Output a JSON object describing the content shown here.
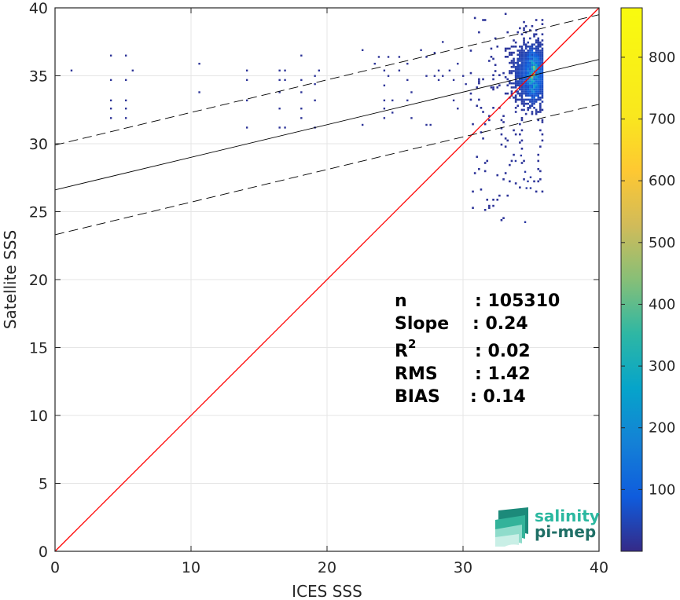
{
  "chart_data": {
    "type": "scatter",
    "subtype": "2d-density-histogram",
    "xlabel": "ICES SSS",
    "ylabel": "Satellite SSS",
    "xlim": [
      0,
      40
    ],
    "ylim": [
      0,
      40
    ],
    "xticks": [
      "0",
      "10",
      "20",
      "30",
      "40"
    ],
    "yticks": [
      "0",
      "5",
      "10",
      "15",
      "20",
      "25",
      "30",
      "35",
      "40"
    ],
    "grid": true,
    "identity_line": {
      "color": "#ff0000",
      "points": [
        [
          0,
          0
        ],
        [
          40,
          40
        ]
      ]
    },
    "fit_line": {
      "color": "#000000",
      "intercept": 26.6,
      "slope": 0.24
    },
    "confidence_lines": [
      {
        "style": "dashed",
        "intercept": 29.9,
        "slope": 0.24
      },
      {
        "style": "dashed",
        "intercept": 23.3,
        "slope": 0.24
      }
    ],
    "colorbar": {
      "min": 0,
      "max": 880,
      "ticks": [
        "100",
        "200",
        "300",
        "400",
        "500",
        "600",
        "700",
        "800"
      ],
      "colormap": "parula"
    },
    "sparse_points": [
      [
        1.2,
        35.4
      ],
      [
        4.1,
        36.5
      ],
      [
        4.1,
        34.7
      ],
      [
        4.1,
        33.2
      ],
      [
        4.1,
        32.6
      ],
      [
        4.1,
        31.9
      ],
      [
        5.2,
        36.5
      ],
      [
        5.2,
        34.7
      ],
      [
        5.2,
        33.2
      ],
      [
        5.2,
        32.6
      ],
      [
        5.2,
        31.9
      ],
      [
        5.7,
        35.4
      ],
      [
        10.6,
        35.9
      ],
      [
        10.6,
        33.8
      ],
      [
        14.1,
        35.4
      ],
      [
        14.1,
        34.7
      ],
      [
        14.1,
        33.2
      ],
      [
        14.1,
        31.2
      ],
      [
        16.5,
        35.4
      ],
      [
        16.5,
        34.7
      ],
      [
        16.5,
        33.8
      ],
      [
        16.5,
        32.6
      ],
      [
        16.5,
        31.2
      ],
      [
        16.9,
        35.4
      ],
      [
        16.9,
        34.7
      ],
      [
        16.9,
        31.2
      ],
      [
        18.1,
        36.5
      ],
      [
        18.1,
        34.7
      ],
      [
        18.1,
        33.8
      ],
      [
        18.1,
        32.6
      ],
      [
        18.1,
        31.9
      ],
      [
        19.1,
        35.0
      ],
      [
        19.1,
        34.4
      ],
      [
        19.1,
        33.2
      ],
      [
        19.1,
        31.2
      ],
      [
        19.4,
        35.4
      ],
      [
        22.6,
        36.9
      ],
      [
        22.6,
        31.4
      ],
      [
        23.5,
        35.9
      ],
      [
        23.8,
        36.4
      ],
      [
        24.2,
        35.4
      ],
      [
        24.2,
        34.3
      ],
      [
        24.2,
        33.2
      ],
      [
        24.2,
        32.6
      ],
      [
        24.2,
        31.9
      ],
      [
        24.5,
        36.4
      ],
      [
        24.5,
        35.0
      ],
      [
        24.8,
        33.2
      ],
      [
        24.8,
        32.3
      ],
      [
        25.3,
        35.4
      ],
      [
        25.3,
        36.4
      ],
      [
        25.9,
        35.9
      ],
      [
        25.9,
        34.7
      ],
      [
        25.9,
        33.2
      ],
      [
        26.2,
        33.8
      ],
      [
        26.2,
        31.9
      ],
      [
        26.9,
        36.9
      ],
      [
        27.3,
        36.4
      ],
      [
        27.3,
        35.0
      ],
      [
        27.3,
        31.4
      ],
      [
        27.6,
        31.4
      ],
      [
        27.9,
        36.7
      ],
      [
        27.9,
        35.0
      ],
      [
        28.2,
        35.4
      ],
      [
        28.2,
        34.7
      ],
      [
        28.5,
        37.5
      ],
      [
        28.5,
        35.0
      ],
      [
        29.0,
        35.4
      ],
      [
        29.3,
        34.7
      ],
      [
        29.3,
        33.2
      ],
      [
        29.6,
        35.9
      ],
      [
        29.6,
        32.6
      ],
      [
        30.0,
        35.0
      ],
      [
        30.2,
        34.4
      ]
    ],
    "dense_cluster": {
      "x_range": [
        30.5,
        35.8
      ],
      "y_range": [
        24.3,
        39.9
      ],
      "peak": [
        35.1,
        35.0
      ],
      "peak_count": 880
    },
    "annotations": [
      {
        "label": "n",
        "value": ": 105310"
      },
      {
        "label": "Slope",
        "value": ": 0.24"
      },
      {
        "label": "R",
        "sup": "2",
        "value": ": 0.02"
      },
      {
        "label": "RMS",
        "value": ": 1.42"
      },
      {
        "label": "BIAS",
        "value": ": 0.14"
      }
    ]
  },
  "logo": {
    "line1": "salinity",
    "line2": "pi-mep",
    "color1": "#2bb8a0",
    "color2": "#1f6f66"
  }
}
